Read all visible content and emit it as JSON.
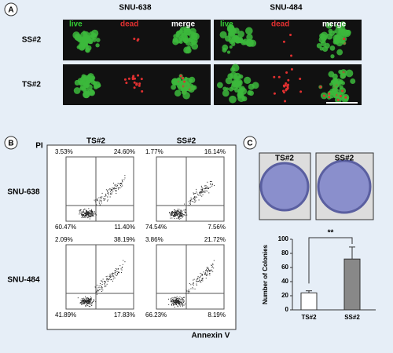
{
  "panel_labels": [
    "A",
    "B",
    "C"
  ],
  "panel_a": {
    "columns": [
      "SNU-638",
      "SNU-484"
    ],
    "rows": [
      "SS#2",
      "TS#2"
    ],
    "channels": [
      {
        "text": "live",
        "color": "#33cc33"
      },
      {
        "text": "dead",
        "color": "#e03030"
      },
      {
        "text": "merge",
        "color": "#ffffff"
      }
    ]
  },
  "panel_b": {
    "y_label": "PI",
    "x_label": "Annexin V",
    "columns": [
      "TS#2",
      "SS#2"
    ],
    "rows": [
      "SNU-638",
      "SNU-484"
    ],
    "plots": [
      [
        [
          "3.53%",
          "24.60%",
          "60.47%",
          "11.40%"
        ],
        [
          "1.77%",
          "16.14%",
          "74.54%",
          "7.56%"
        ]
      ],
      [
        [
          "2.09%",
          "38.19%",
          "41.89%",
          "17.83%"
        ],
        [
          "3.86%",
          "21.72%",
          "66.23%",
          "8.19%"
        ]
      ]
    ]
  },
  "panel_c": {
    "dishes": [
      "TS#2",
      "SS#2"
    ]
  },
  "chart_data": {
    "type": "bar",
    "y_label": "Number of Colonies",
    "categories": [
      "TS#2",
      "SS#2"
    ],
    "values": [
      24,
      72
    ],
    "errors": [
      3,
      17
    ],
    "colors": [
      "#ffffff",
      "#888888"
    ],
    "ylim": [
      0,
      100
    ],
    "yticks": [
      0,
      20,
      40,
      60,
      80,
      100
    ],
    "annotation": "**"
  }
}
